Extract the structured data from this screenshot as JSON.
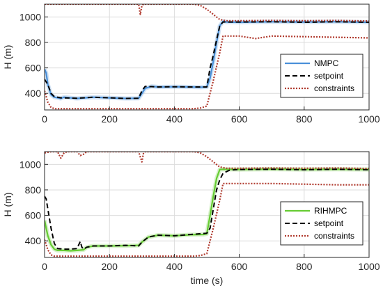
{
  "chart_data": [
    {
      "type": "line",
      "title": "",
      "xlabel": "",
      "ylabel": "H (m)",
      "xlim": [
        0,
        1000
      ],
      "ylim": [
        270,
        1100
      ],
      "xticks": [
        0,
        200,
        400,
        600,
        800,
        1000
      ],
      "yticks": [
        400,
        600,
        800,
        1000
      ],
      "grid": true,
      "legend_position": "right",
      "series": [
        {
          "name": "NMPC",
          "style": "solid",
          "color": "#4a90d9",
          "x": [
            0,
            5,
            10,
            20,
            30,
            40,
            50,
            60,
            80,
            100,
            150,
            200,
            250,
            290,
            300,
            310,
            330,
            350,
            400,
            450,
            480,
            500,
            510,
            520,
            530,
            540,
            550,
            560,
            600,
            700,
            800,
            900,
            1000
          ],
          "y": [
            590,
            560,
            470,
            390,
            370,
            365,
            360,
            370,
            365,
            360,
            370,
            365,
            360,
            362,
            400,
            440,
            455,
            450,
            452,
            450,
            448,
            450,
            520,
            650,
            800,
            930,
            965,
            960,
            958,
            962,
            960,
            962,
            958
          ]
        },
        {
          "name": "setpoint",
          "style": "dashed",
          "color": "#000000",
          "x": [
            0,
            10,
            20,
            30,
            50,
            100,
            150,
            200,
            250,
            290,
            300,
            310,
            350,
            400,
            450,
            500,
            510,
            520,
            530,
            540,
            550,
            600,
            700,
            800,
            900,
            1000
          ],
          "y": [
            510,
            470,
            400,
            375,
            365,
            362,
            370,
            365,
            360,
            362,
            420,
            455,
            450,
            452,
            450,
            450,
            600,
            700,
            820,
            930,
            960,
            960,
            962,
            958,
            962,
            958
          ]
        },
        {
          "name": "constraints",
          "style": "dotted",
          "color": "#b03a2e",
          "x": [
            0,
            200,
            280,
            290,
            295,
            300,
            305,
            310,
            320,
            400,
            460,
            480,
            500,
            520,
            540,
            560,
            600,
            700,
            800,
            900,
            1000
          ],
          "y": [
            1100,
            1100,
            1100,
            1100,
            1020,
            1090,
            1100,
            1100,
            1100,
            1100,
            1100,
            1090,
            1060,
            1020,
            980,
            970,
            970,
            972,
            970,
            972,
            968
          ],
          "upper": true
        },
        {
          "name": "",
          "style": "dotted",
          "color": "#b03a2e",
          "x": [
            0,
            10,
            20,
            30,
            40,
            100,
            200,
            300,
            400,
            460,
            480,
            500,
            520,
            540,
            550,
            600,
            650,
            700,
            800,
            900,
            1000
          ],
          "y": [
            420,
            330,
            290,
            280,
            280,
            280,
            280,
            280,
            280,
            280,
            285,
            300,
            500,
            720,
            850,
            850,
            830,
            850,
            845,
            840,
            835
          ],
          "lower": true
        }
      ]
    },
    {
      "type": "line",
      "title": "",
      "xlabel": "time (s)",
      "ylabel": "H (m)",
      "xlim": [
        0,
        1000
      ],
      "ylim": [
        270,
        1100
      ],
      "xticks": [
        0,
        200,
        400,
        600,
        800,
        1000
      ],
      "yticks": [
        400,
        600,
        800,
        1000
      ],
      "grid": true,
      "legend_position": "right",
      "series": [
        {
          "name": "RIHMPC",
          "style": "solid",
          "color": "#66cc33",
          "x": [
            0,
            5,
            10,
            20,
            30,
            40,
            60,
            80,
            100,
            120,
            130,
            150,
            200,
            250,
            290,
            300,
            320,
            350,
            400,
            450,
            490,
            500,
            510,
            520,
            530,
            540,
            550,
            600,
            700,
            800,
            900,
            1000
          ],
          "y": [
            560,
            500,
            440,
            370,
            335,
            325,
            325,
            322,
            325,
            330,
            350,
            360,
            360,
            362,
            365,
            390,
            430,
            445,
            440,
            448,
            450,
            455,
            600,
            750,
            890,
            960,
            962,
            960,
            963,
            960,
            962,
            960
          ]
        },
        {
          "name": "setpoint",
          "style": "dashed",
          "color": "#000000",
          "x": [
            0,
            5,
            10,
            20,
            30,
            40,
            60,
            80,
            100,
            110,
            115,
            120,
            130,
            150,
            200,
            250,
            290,
            300,
            320,
            350,
            400,
            450,
            500,
            510,
            520,
            530,
            540,
            550,
            570,
            600,
            700,
            800,
            900,
            1000
          ],
          "y": [
            750,
            730,
            650,
            500,
            380,
            340,
            335,
            335,
            340,
            395,
            350,
            335,
            350,
            360,
            360,
            365,
            360,
            390,
            430,
            445,
            440,
            450,
            460,
            500,
            650,
            800,
            880,
            930,
            955,
            960,
            962,
            958,
            962,
            958
          ]
        },
        {
          "name": "constraints",
          "style": "dotted",
          "color": "#b03a2e",
          "x": [
            0,
            20,
            40,
            50,
            60,
            70,
            80,
            100,
            110,
            120,
            130,
            150,
            200,
            290,
            300,
            305,
            310,
            320,
            400,
            460,
            480,
            500,
            520,
            540,
            560,
            600,
            700,
            800,
            900,
            1000
          ],
          "y": [
            1090,
            1100,
            1100,
            1050,
            1090,
            1100,
            1100,
            1100,
            1070,
            1080,
            1100,
            1100,
            1100,
            1100,
            1020,
            1090,
            1100,
            1100,
            1100,
            1100,
            1090,
            1060,
            1020,
            980,
            970,
            970,
            972,
            970,
            972,
            968
          ],
          "upper": true
        },
        {
          "name": "",
          "style": "dotted",
          "color": "#b03a2e",
          "x": [
            0,
            10,
            20,
            30,
            40,
            100,
            200,
            300,
            400,
            460,
            480,
            500,
            520,
            540,
            550,
            600,
            700,
            800,
            900,
            1000
          ],
          "y": [
            410,
            330,
            290,
            280,
            280,
            280,
            280,
            280,
            280,
            280,
            285,
            300,
            500,
            720,
            850,
            850,
            850,
            845,
            840,
            840
          ],
          "lower": true
        }
      ]
    }
  ]
}
